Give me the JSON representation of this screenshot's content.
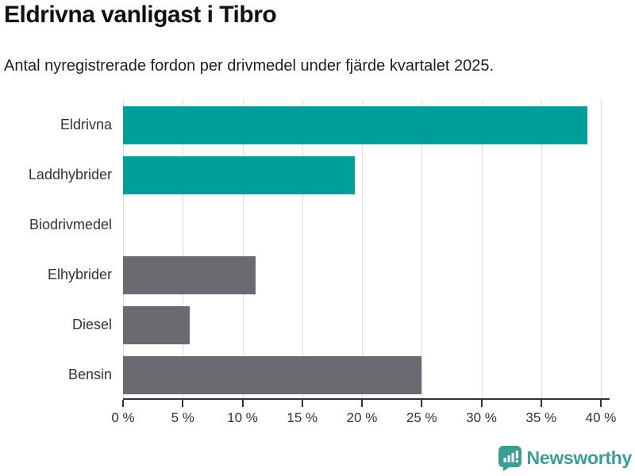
{
  "header": {
    "title": "Eldrivna vanligast i Tibro",
    "subtitle": "Antal nyregistrerade fordon per drivmedel under fjärde kvartalet 2025."
  },
  "chart_data": {
    "type": "bar",
    "orientation": "horizontal",
    "title": "Eldrivna vanligast i Tibro",
    "subtitle": "Antal nyregistrerade fordon per drivmedel under fjärde kvartalet 2025.",
    "categories": [
      "Eldrivna",
      "Laddhybrider",
      "Biodrivmedel",
      "Elhybrider",
      "Diesel",
      "Bensin"
    ],
    "values": [
      38.9,
      19.4,
      0,
      11.1,
      5.6,
      25.0
    ],
    "unit": "%",
    "xlim": [
      0,
      40
    ],
    "x_ticks": [
      0,
      5,
      10,
      15,
      20,
      25,
      30,
      35,
      40
    ],
    "x_tick_labels": [
      "0 %",
      "5 %",
      "10 %",
      "15 %",
      "20 %",
      "25 %",
      "30 %",
      "35 %",
      "40 %"
    ],
    "grid": "vertical",
    "legend": "none",
    "xlabel": "",
    "ylabel": "",
    "bar_colors": [
      "#009E98",
      "#009E98",
      "#6A6A70",
      "#6A6A70",
      "#6A6A70",
      "#6A6A70"
    ],
    "colors": {
      "highlight": "#009E98",
      "default": "#6A6A70",
      "gridline": "#dddddd",
      "axis": "#333333",
      "tick_text": "#333333"
    }
  },
  "footer": {
    "brand": "Newsworthy",
    "brand_color": "#3C9D96",
    "logo_icon": "bar-chart-speech-bubble-icon"
  }
}
